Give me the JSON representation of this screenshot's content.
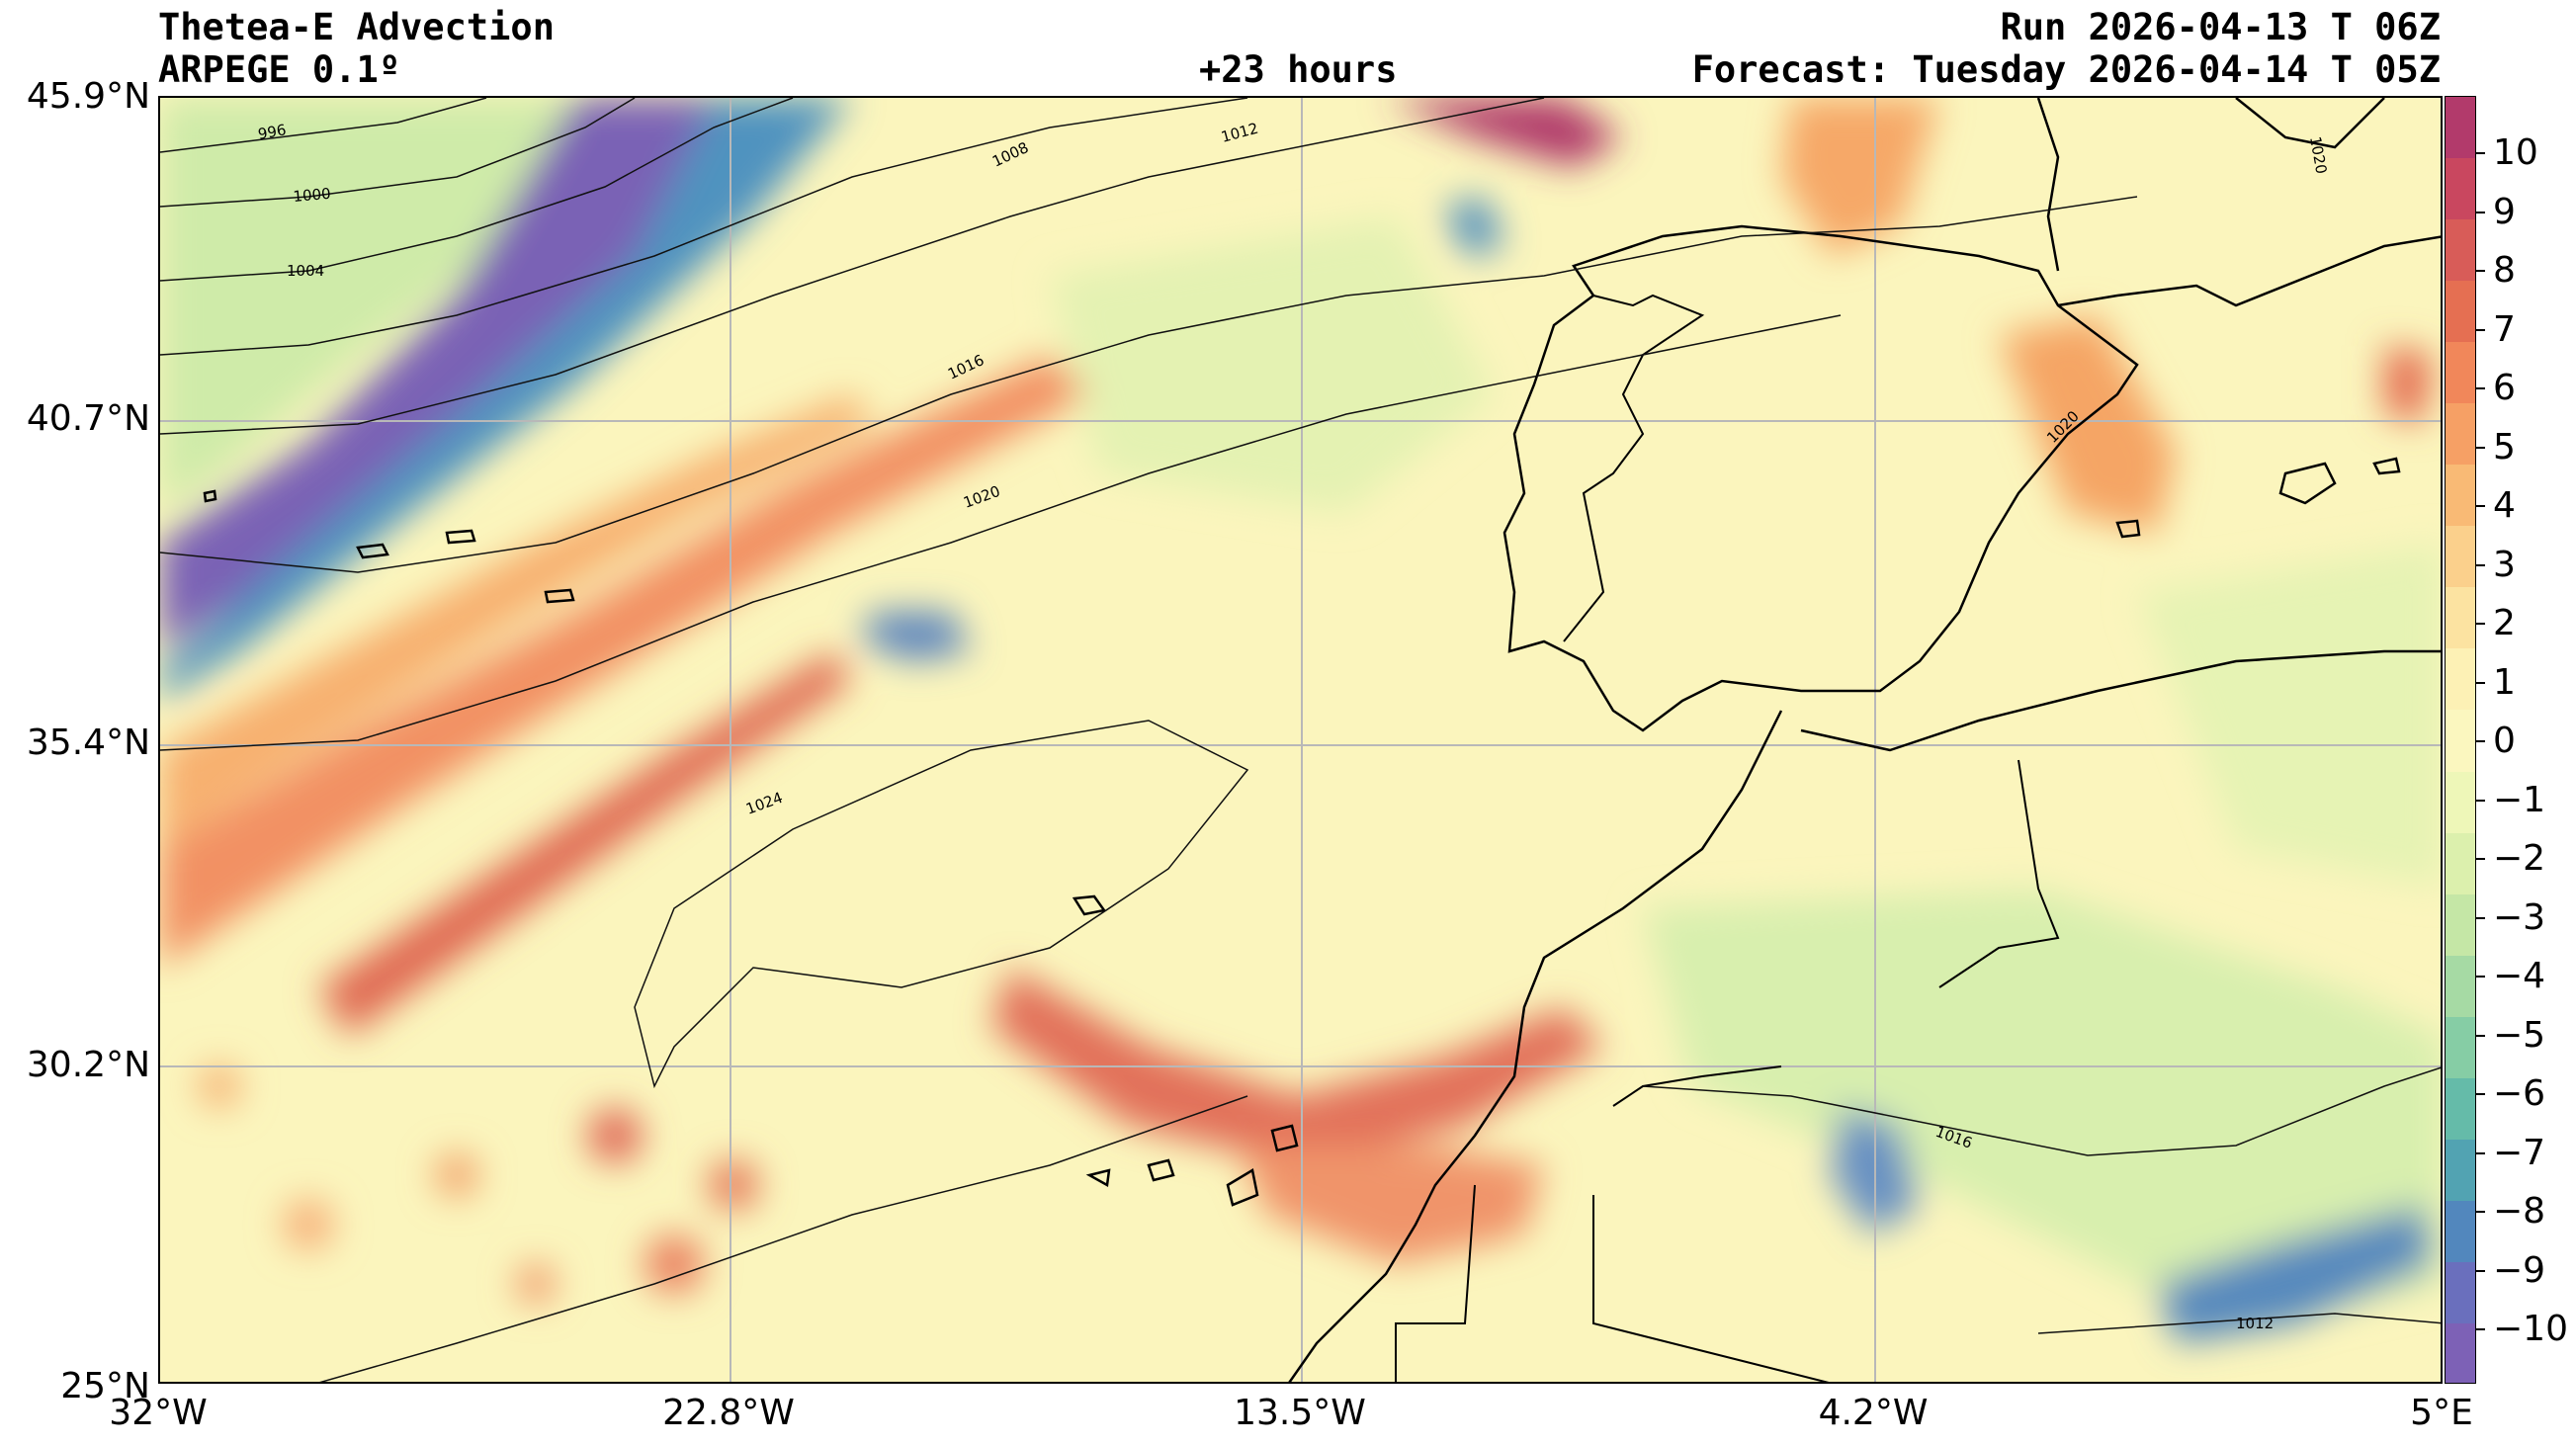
{
  "header": {
    "title": "Thetea-E Advection",
    "model": "ARPEGE 0.1º",
    "lead_time": "+23 hours",
    "run": "Run 2026-04-13 T 06Z",
    "forecast": "Forecast: Tuesday 2026-04-14 T 05Z"
  },
  "map": {
    "lat_labels": [
      "45.9°N",
      "40.7°N",
      "35.4°N",
      "30.2°N",
      "25°N"
    ],
    "lon_labels": [
      "32°W",
      "22.8°W",
      "13.5°W",
      "4.2°W",
      "5°E"
    ],
    "isobar_labels": [
      "996",
      "1000",
      "1004",
      "1008",
      "1012",
      "1016",
      "1020",
      "1024",
      "1016",
      "1012",
      "1020",
      "1020"
    ]
  },
  "colorbar": {
    "labels": [
      "10",
      "9",
      "8",
      "7",
      "6",
      "5",
      "4",
      "3",
      "2",
      "1",
      "0",
      "−1",
      "−2",
      "−3",
      "−4",
      "−5",
      "−6",
      "−7",
      "−8",
      "−9",
      "−10"
    ],
    "colors": [
      "#b23a6b",
      "#c9475f",
      "#d85c58",
      "#e56f52",
      "#f1875a",
      "#f6a065",
      "#f9ba75",
      "#fbd08c",
      "#fce3a1",
      "#fdf1b5",
      "#fbf7bf",
      "#eef7b8",
      "#dcf0ad",
      "#c5e7a6",
      "#a6daa4",
      "#86cda5",
      "#65bba9",
      "#52a3b2",
      "#5287bd",
      "#6a6fbd",
      "#7d61b6"
    ]
  }
}
